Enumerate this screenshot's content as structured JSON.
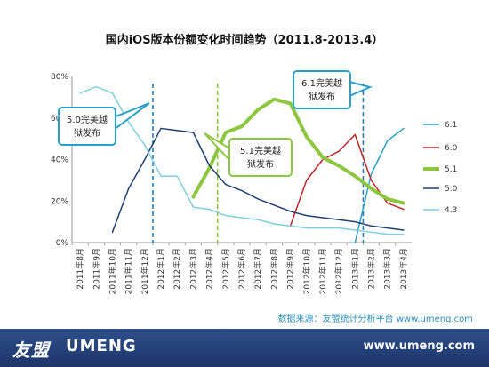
{
  "page": {
    "source": "数据来源：友盟统计分析平台 www.umeng.com",
    "footer_logo_cn": "友盟",
    "footer_logo_en": "UMENG",
    "footer_url": "www.umeng.com"
  },
  "chart_data": {
    "type": "line",
    "title": "国内iOS版本份额变化时间趋势（2011.8-2013.4）",
    "xlabel": "",
    "ylabel": "",
    "ylim": [
      0,
      80
    ],
    "yticks": [
      "0%",
      "20%",
      "40%",
      "60%",
      "80%"
    ],
    "categories": [
      "2011年8月",
      "2011年9月",
      "2011年10月",
      "2011年11月",
      "2011年12月",
      "2012年1月",
      "2012年2月",
      "2012年3月",
      "2012年4月",
      "2012年5月",
      "2012年6月",
      "2012年7月",
      "2012年8月",
      "2012年9月",
      "2012年10月",
      "2012年11月",
      "2012年12月",
      "2013年1月",
      "2013年2月",
      "2013年3月",
      "2013年4月"
    ],
    "grid": false,
    "legend": "right",
    "series": [
      {
        "name": "6.1",
        "color": "#2a9fc8",
        "width": 1.5,
        "values": [
          null,
          null,
          null,
          null,
          null,
          null,
          null,
          null,
          null,
          null,
          null,
          null,
          null,
          null,
          null,
          null,
          null,
          0,
          33,
          49,
          55
        ]
      },
      {
        "name": "6.0",
        "color": "#c0262b",
        "width": 1.5,
        "values": [
          null,
          null,
          null,
          null,
          null,
          null,
          null,
          null,
          null,
          null,
          null,
          null,
          null,
          8,
          30,
          40,
          44,
          52,
          30,
          19,
          16
        ]
      },
      {
        "name": "5.1",
        "color": "#8dc63f",
        "width": 4,
        "values": [
          null,
          null,
          null,
          null,
          null,
          null,
          null,
          22,
          36,
          53,
          56,
          64,
          69,
          67,
          51,
          41,
          37,
          32,
          26,
          21,
          19
        ]
      },
      {
        "name": "5.0",
        "color": "#1f3f73",
        "width": 1.5,
        "values": [
          null,
          null,
          5,
          26,
          40,
          55,
          54,
          53,
          37,
          28,
          25,
          21,
          18,
          15,
          13,
          12,
          11,
          10,
          8,
          7,
          6
        ]
      },
      {
        "name": "4.3",
        "color": "#7fcfe0",
        "width": 1.5,
        "values": [
          72,
          75,
          72,
          58,
          47,
          32,
          32,
          17,
          16,
          13,
          12,
          11,
          9,
          8,
          7,
          7,
          7,
          6,
          5,
          4,
          4
        ]
      }
    ],
    "annotations": [
      {
        "text": [
          "5.0完美越",
          "狱发布"
        ],
        "at": "2012年1月",
        "line_color": "#2a7fb0"
      },
      {
        "text": [
          "5.1完美越",
          "狱发布"
        ],
        "at": "2012年5月",
        "line_color": "#8dc63f"
      },
      {
        "text": [
          "6.1完美越",
          "狱发布"
        ],
        "at": "2013年2月",
        "line_color": "#2a7fb0"
      }
    ]
  }
}
